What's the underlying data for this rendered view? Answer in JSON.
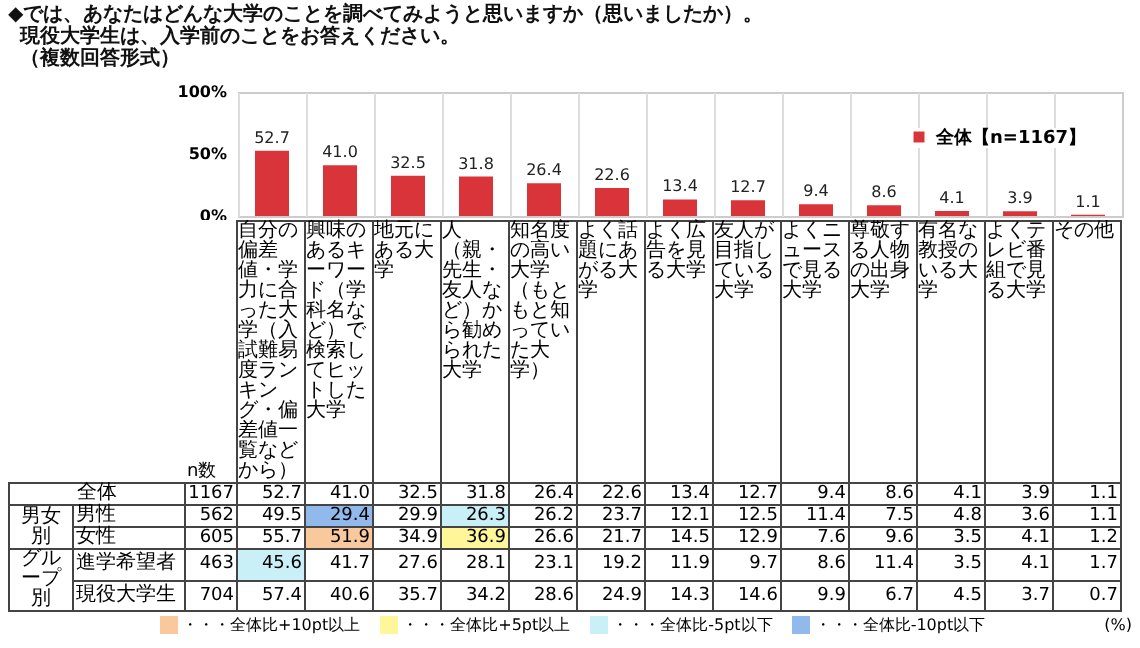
{
  "chart_data": {
    "type": "bar",
    "title": "◆では、あなたはどんな大学のことを調べてみようと思いますか（思いましたか）。",
    "subtitle": "現役大学生は、入学前のことをお答えください。",
    "categories": [
      "自分の偏差値・学力に合った大学（入試難易度ランキング・偏差値一覧などから）",
      "興味のあるキーワード（学科名など）で検索してヒットした大学",
      "地元にある大学",
      "人（親・先生・友人など）から勧められた大学",
      "知名度の高い大学（もともと知っていた大学）",
      "よく話題にあがる大学",
      "よく広告を見る大学",
      "友人が目指している大学",
      "よくニュースで見る大学",
      "尊敬する人物の出身大学",
      "有名な教授のいる大学",
      "よくテレビ番組で見る大学",
      "その他"
    ],
    "series": [
      {
        "name": "全体【n=1167】",
        "color": "#d9343a",
        "values": [
          52.7,
          41.0,
          32.5,
          31.8,
          26.4,
          22.6,
          13.4,
          12.7,
          9.4,
          8.6,
          4.1,
          3.9,
          1.1
        ]
      }
    ],
    "ylim": [
      0,
      100
    ],
    "yticks": [
      {
        "value": 0,
        "label": "0%"
      },
      {
        "value": 50,
        "label": "50%"
      },
      {
        "value": 100,
        "label": "100%"
      }
    ],
    "value_labels": [
      "52.7",
      "41.0",
      "32.5",
      "31.8",
      "26.4",
      "22.6",
      "13.4",
      "12.7",
      "9.4",
      "8.6",
      "4.1",
      "3.9",
      "1.1"
    ],
    "grid": "x",
    "legend": "top right",
    "annotations": [
      "（複数回答形式）",
      "n数",
      "全体 1167",
      "男女別",
      "男性 562 49.5 29.4 29.9 26.3 26.2 23.7 12.1 12.5 11.4 7.5 4.8 3.6 1.1",
      "女性 605 55.7 51.9 34.9 36.9 26.6 21.7 14.5 12.9 7.6 9.6 3.5 4.1 1.2",
      "グループ別",
      "進学希望者 463 45.6 41.7 27.6 28.1 23.1 19.2 11.9 9.7 8.6 11.4 3.5 4.1 1.7",
      "現役大学生 704 57.4 40.6 35.7 34.2 28.6 24.9 14.3 14.6 9.9 6.7 4.5 3.7 0.7",
      "・・・全体比+10pt以上",
      "・・・全体比+5pt以上",
      "・・・全体比-5pt以下",
      "・・・全体比-10pt以下",
      "(%)"
    ]
  }
}
